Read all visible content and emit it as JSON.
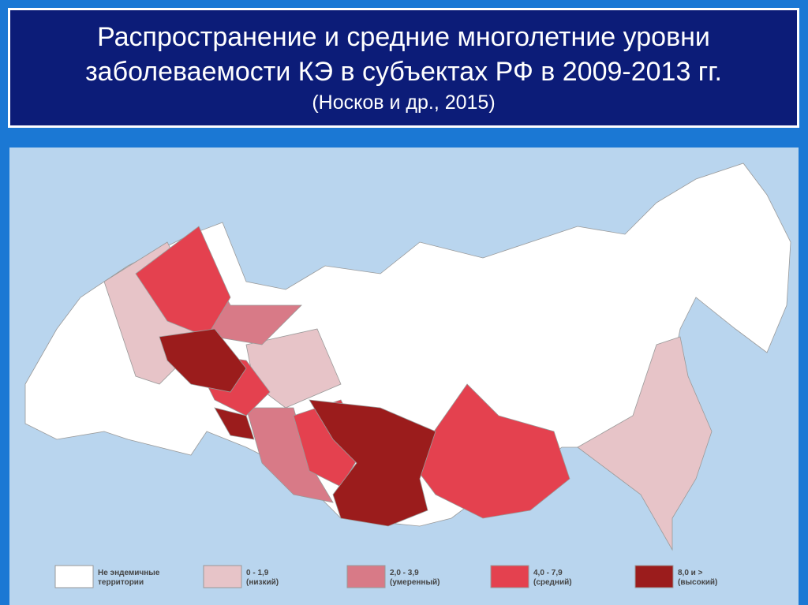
{
  "header": {
    "title_lines": [
      "Распространение и средние многолетние уровни",
      "заболеваемости КЭ в субъектах РФ в 2009-2013 гг."
    ],
    "citation": "(Носков и др., 2015)"
  },
  "legend": [
    {
      "lines": [
        "Не эндемичные",
        "территории"
      ]
    },
    {
      "lines": [
        "0 - 1,9",
        "(низкий)"
      ]
    },
    {
      "lines": [
        "2,0 - 3,9",
        "(умеренный)"
      ]
    },
    {
      "lines": [
        "4,0 - 7,9",
        "(средний)"
      ]
    },
    {
      "lines": [
        "8,0 и >",
        "(высокий)"
      ]
    }
  ]
}
